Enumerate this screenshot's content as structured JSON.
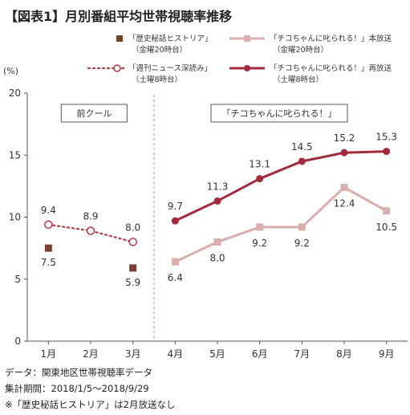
{
  "title": "【図表1】月別番組平均世帯視聴率推移",
  "legend": [
    {
      "name": "「歴史秘話ヒストリア」",
      "sub": "（金曜20時台）",
      "style": "square-marker",
      "color": "#7b3f32"
    },
    {
      "name": "「週刊ニュース深読み」",
      "sub": "（土曜8時台）",
      "style": "dotted-open-circle",
      "color": "#b33a4a"
    },
    {
      "name": "「チコちゃんに叱られる！」本放送",
      "sub": "（金曜20時台）",
      "style": "square-line",
      "color": "#d9aeac"
    },
    {
      "name": "「チコちゃんに叱られる！」再放送",
      "sub": "（土曜8時台）",
      "style": "circle-line",
      "color": "#a32a3c"
    }
  ],
  "chart_data": {
    "type": "line",
    "categories": [
      "1月",
      "2月",
      "3月",
      "4月",
      "5月",
      "6月",
      "7月",
      "8月",
      "9月"
    ],
    "y_unit": "(%)",
    "ylim": [
      0,
      20
    ],
    "yticks": [
      "0",
      "5",
      "10",
      "15",
      "20"
    ],
    "grid": false,
    "series": [
      {
        "name": "「歴史秘話ヒストリア」",
        "values": [
          7.5,
          null,
          5.9,
          null,
          null,
          null,
          null,
          null,
          null
        ],
        "labels": [
          "7.5",
          null,
          "5.9",
          null,
          null,
          null,
          null,
          null,
          null
        ]
      },
      {
        "name": "「週刊ニュース深読み」",
        "values": [
          9.4,
          8.9,
          8.0,
          null,
          null,
          null,
          null,
          null,
          null
        ],
        "labels": [
          "9.4",
          "8.9",
          "8.0",
          null,
          null,
          null,
          null,
          null,
          null
        ]
      },
      {
        "name": "「チコちゃんに叱られる！」本放送",
        "values": [
          null,
          null,
          null,
          6.4,
          8.0,
          9.2,
          9.2,
          12.4,
          10.5
        ],
        "labels": [
          null,
          null,
          null,
          "6.4",
          "8.0",
          "9.2",
          "9.2",
          "12.4",
          "10.5"
        ]
      },
      {
        "name": "「チコちゃんに叱られる！」再放送",
        "values": [
          null,
          null,
          null,
          9.7,
          11.3,
          13.1,
          14.5,
          15.2,
          15.3
        ],
        "labels": [
          null,
          null,
          null,
          "9.7",
          "11.3",
          "13.1",
          "14.5",
          "15.2",
          "15.3"
        ]
      }
    ],
    "annotations": [
      "前クール",
      "「チコちゃんに叱られる！」"
    ]
  },
  "footnotes": [
    "データ：関東地区世帯視聴率データ",
    "集計期間：2018/1/5〜2018/9/29",
    "※「歴史秘話ヒストリア」は2月放送なし"
  ]
}
